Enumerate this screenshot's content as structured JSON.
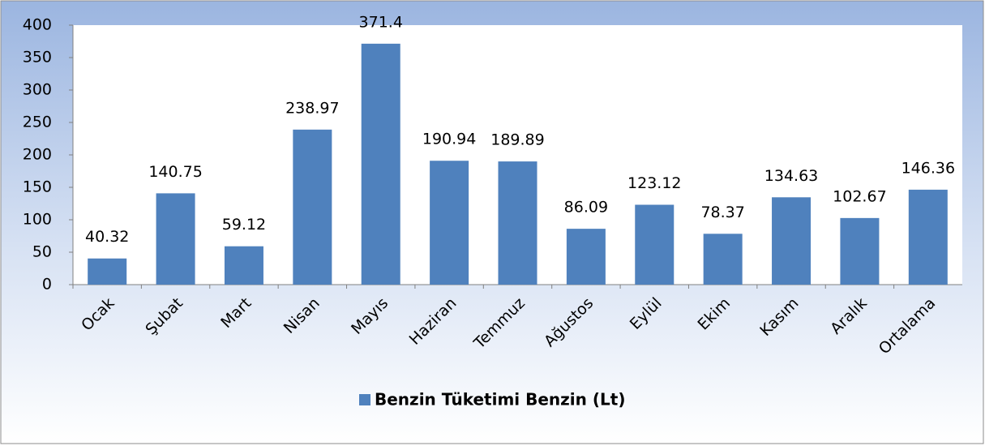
{
  "chart_data": {
    "type": "bar",
    "categories": [
      "Ocak",
      "Şubat",
      "Mart",
      "Nisan",
      "Mayıs",
      "Haziran",
      "Temmuz",
      "Ağustos",
      "Eylül",
      "Ekim",
      "Kasım",
      "Aralık",
      "Ortalama"
    ],
    "series": [
      {
        "name": "Benzin Tüketimi Benzin (Lt)",
        "color": "#4f81bd",
        "values": [
          40.32,
          140.75,
          59.12,
          238.97,
          371.4,
          190.94,
          189.89,
          86.09,
          123.12,
          78.37,
          134.63,
          102.67,
          146.36
        ]
      }
    ],
    "ylim": [
      0,
      400
    ],
    "yticks": [
      0,
      50,
      100,
      150,
      200,
      250,
      300,
      350,
      400
    ],
    "legend": "bottom"
  }
}
